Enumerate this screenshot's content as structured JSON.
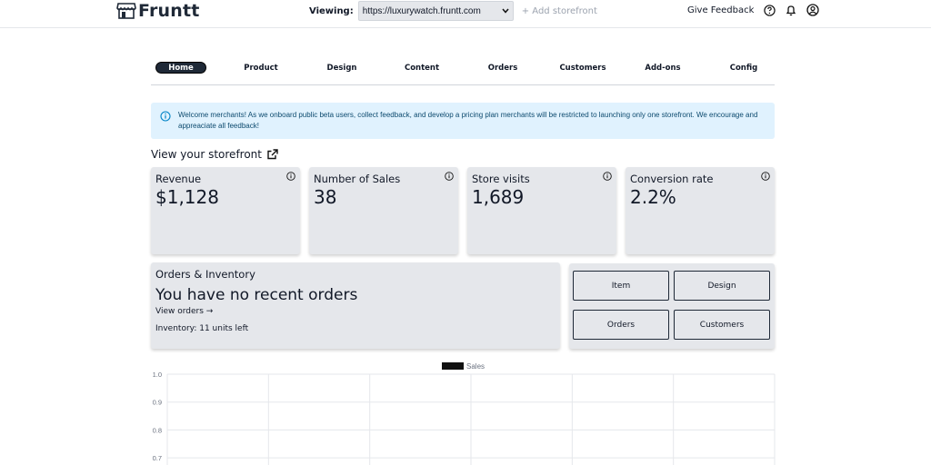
{
  "app": {
    "name": "Fruntt"
  },
  "header": {
    "viewing_label": "Viewing:",
    "store_url": "https://luxurywatch.fruntt.com",
    "add_storefront": "+ Add storefront",
    "give_feedback": "Give Feedback"
  },
  "nav": {
    "items": [
      {
        "label": "Home",
        "active": true
      },
      {
        "label": "Product"
      },
      {
        "label": "Design"
      },
      {
        "label": "Content"
      },
      {
        "label": "Orders"
      },
      {
        "label": "Customers"
      },
      {
        "label": "Add-ons"
      },
      {
        "label": "Config"
      }
    ]
  },
  "banner": {
    "text": "Welcome merchants! As we onboard public beta users, collect feedback, and develop a pricing plan merchants will be restricted to launching only one storefront. We encourage and appreaciate all feedback!"
  },
  "view_storefront": "View your storefront",
  "stats": [
    {
      "title": "Revenue",
      "value": "$1,128"
    },
    {
      "title": "Number of Sales",
      "value": "38"
    },
    {
      "title": "Store visits",
      "value": "1,689"
    },
    {
      "title": "Conversion rate",
      "value": "2.2%"
    }
  ],
  "orders": {
    "title": "Orders & Inventory",
    "headline": "You have no recent orders",
    "view_orders": "View orders",
    "inventory": "Inventory: 11 units left"
  },
  "quick_actions": {
    "item": "Item",
    "design": "Design",
    "orders": "Orders",
    "customers": "Customers"
  },
  "chart_data": {
    "type": "line",
    "legend": [
      "Sales"
    ],
    "series": [
      {
        "name": "Sales",
        "values": []
      }
    ],
    "y_ticks": [
      "1.0",
      "0.9",
      "0.8",
      "0.7"
    ],
    "ylim": [
      0.7,
      1.0
    ],
    "grid": true,
    "legend_position": "top-center",
    "colors": {
      "sales": "#111111",
      "grid": "#e5e7eb"
    }
  }
}
